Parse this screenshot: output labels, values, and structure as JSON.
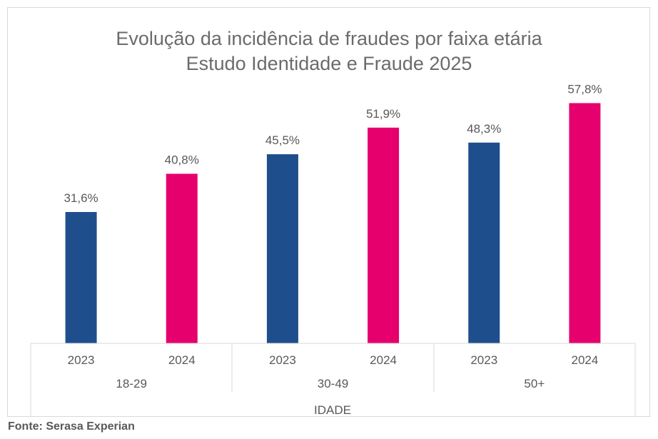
{
  "chart_data": {
    "type": "bar",
    "title_lines": [
      "Evolução da incidência de fraudes por faixa etária",
      "Estudo Identidade e Fraude 2025"
    ],
    "xlabel": "IDADE",
    "ylabel": "",
    "groups": [
      "18-29",
      "30-49",
      "50+"
    ],
    "subcategories": [
      "2023",
      "2024"
    ],
    "value_labels": [
      "31,6%",
      "40,8%",
      "45,5%",
      "51,9%",
      "48,3%",
      "57,8%"
    ],
    "values": [
      31.6,
      40.8,
      45.5,
      51.9,
      48.3,
      57.8
    ],
    "ylim": [
      0,
      62
    ],
    "grid": false,
    "legend": "none",
    "colors": {
      "2023": "#1f4e8c",
      "2024": "#e6006e"
    }
  },
  "source": "Fonte: Serasa Experian"
}
